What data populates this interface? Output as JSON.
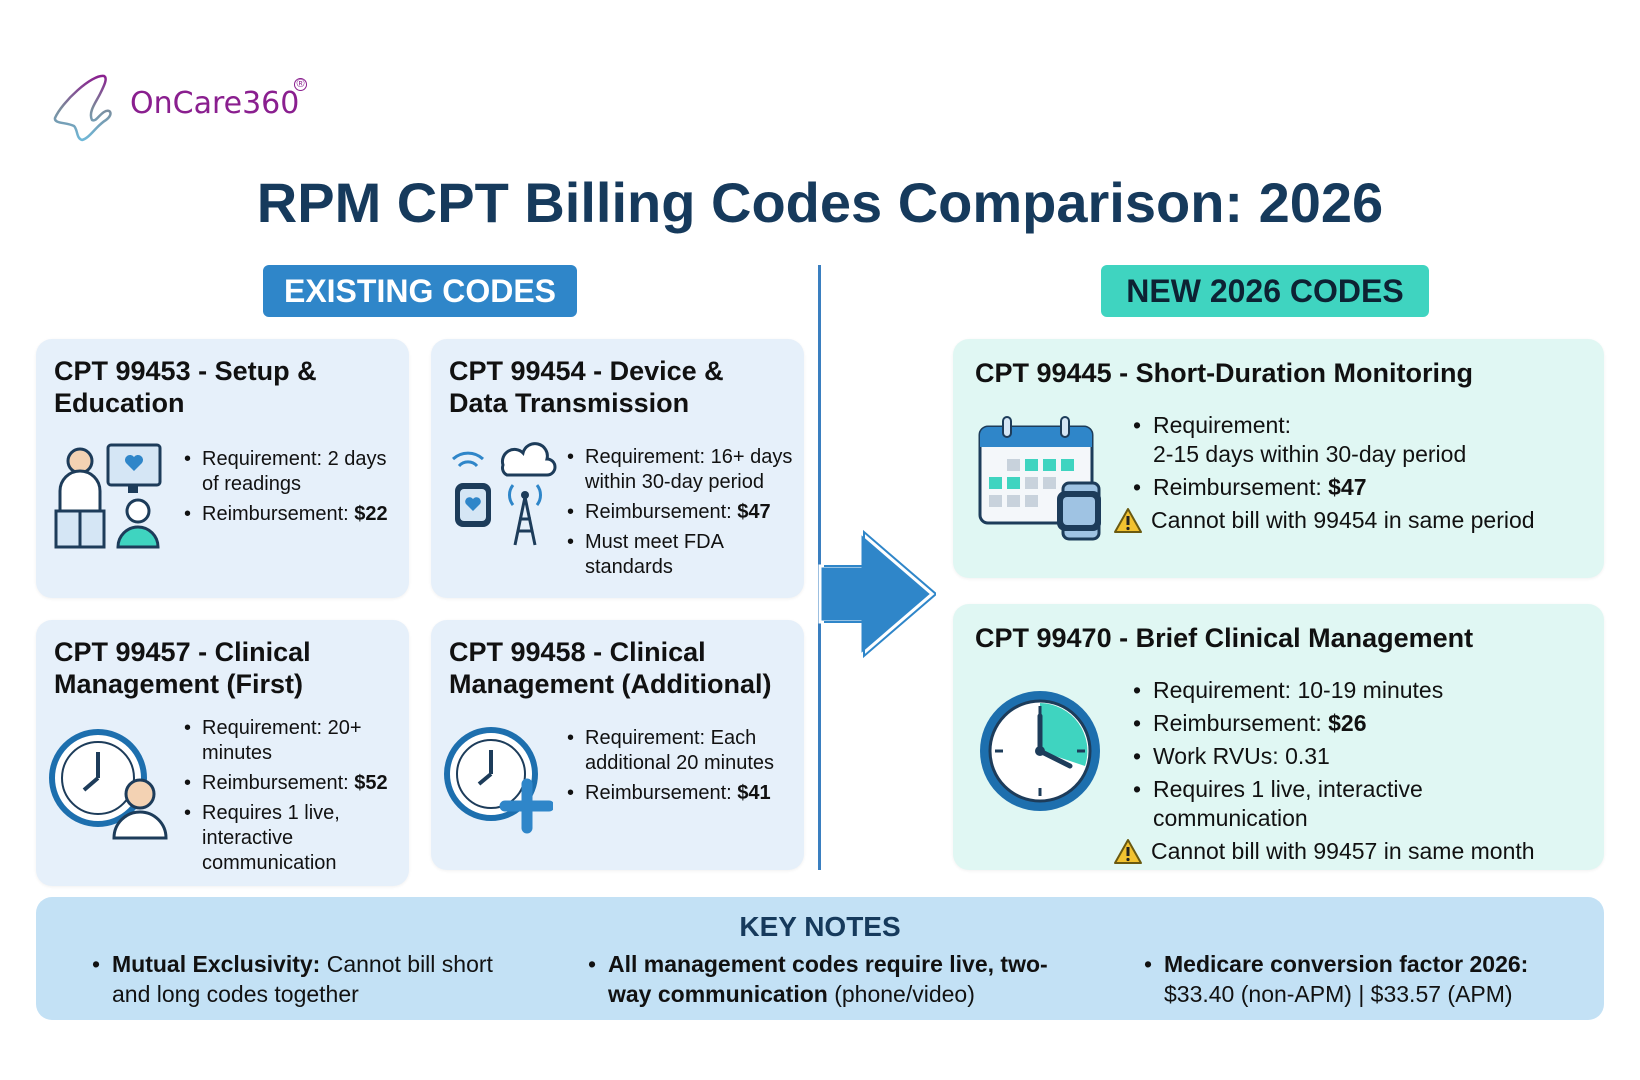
{
  "brand": {
    "name": "OnCare360",
    "registered": "®"
  },
  "title": "RPM CPT Billing Codes Comparison: 2026",
  "sections": {
    "existing": "EXISTING CODES",
    "new": "NEW 2026 CODES"
  },
  "colors": {
    "title": "#163a5c",
    "existing_badge": "#2f86c9",
    "new_badge": "#3fd4c0",
    "existing_card": "#e6f0fa",
    "new_card": "#e0f7f3",
    "key_notes": "#c3e1f5",
    "warning": "#f2c230"
  },
  "existing_codes": [
    {
      "title": "CPT 99453 - Setup & Education",
      "icon": "doctor-education-icon",
      "bullets": [
        {
          "label": "Requirement: ",
          "value": "2 days of readings"
        },
        {
          "label": "Reimbursement: ",
          "bold": "$22"
        }
      ]
    },
    {
      "title": "CPT 99454 - Device & Data Transmission",
      "icon": "device-transmission-icon",
      "bullets": [
        {
          "label": "Requirement: ",
          "value": "16+ days within 30-day period"
        },
        {
          "label": "Reimbursement: ",
          "bold": "$47"
        },
        {
          "label": "Must meet FDA standards"
        }
      ]
    },
    {
      "title": "CPT 99457 - Clinical Management (First)",
      "icon": "clock-clinician-icon",
      "bullets": [
        {
          "label": "Requirement: ",
          "value": "20+ minutes"
        },
        {
          "label": "Reimbursement: ",
          "bold": "$52"
        },
        {
          "label": "Requires 1 live, interactive communication"
        }
      ]
    },
    {
      "title": "CPT 99458 - Clinical Management (Additional)",
      "icon": "clock-plus-icon",
      "bullets": [
        {
          "label": "Requirement: ",
          "value": "Each additional 20 minutes"
        },
        {
          "label": "Reimbursement: ",
          "bold": "$41"
        }
      ]
    }
  ],
  "new_codes": [
    {
      "title": "CPT 99445 - Short-Duration Monitoring",
      "icon": "calendar-watch-icon",
      "bullets": [
        {
          "label": "Requirement: ",
          "value": "2-15 days within 30-day period"
        },
        {
          "label": "Reimbursement: ",
          "bold": "$47"
        }
      ],
      "warning": "Cannot bill with 99454 in same period"
    },
    {
      "title": "CPT 99470 - Brief Clinical Management",
      "icon": "clock-icon",
      "bullets": [
        {
          "label": "Requirement: ",
          "value": "10-19 minutes"
        },
        {
          "label": "Reimbursement: ",
          "bold": "$26"
        },
        {
          "label": "Work RVUs: ",
          "value": "0.31"
        },
        {
          "label": "Requires 1 live, interactive communication"
        }
      ],
      "warning": "Cannot bill with 99457 in same month"
    }
  ],
  "key_notes": {
    "title": "KEY NOTES",
    "items": [
      {
        "bold": "Mutual Exclusivity:",
        "text": " Cannot bill short and long codes together"
      },
      {
        "bold": "All management codes require live, two-way communication",
        "text": " (phone/video)"
      },
      {
        "bold": "Medicare conversion factor 2026:",
        "text": " $33.40 (non-APM) | $33.57 (APM)"
      }
    ]
  }
}
